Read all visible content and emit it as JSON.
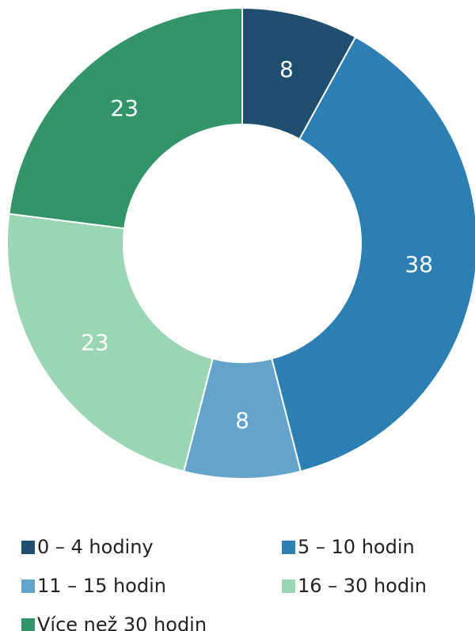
{
  "chart_data": {
    "type": "donut",
    "categories": [
      "0 – 4 hodiny",
      "5 – 10 hodin",
      "11 – 15 hodin",
      "16 – 30 hodin",
      "Více než 30 hodin"
    ],
    "values": [
      8,
      38,
      8,
      23,
      23
    ],
    "colors": [
      "#1f4e6e",
      "#2b7fb3",
      "#63a3cc",
      "#9ad6b4",
      "#339469"
    ],
    "legend": "bottom"
  }
}
